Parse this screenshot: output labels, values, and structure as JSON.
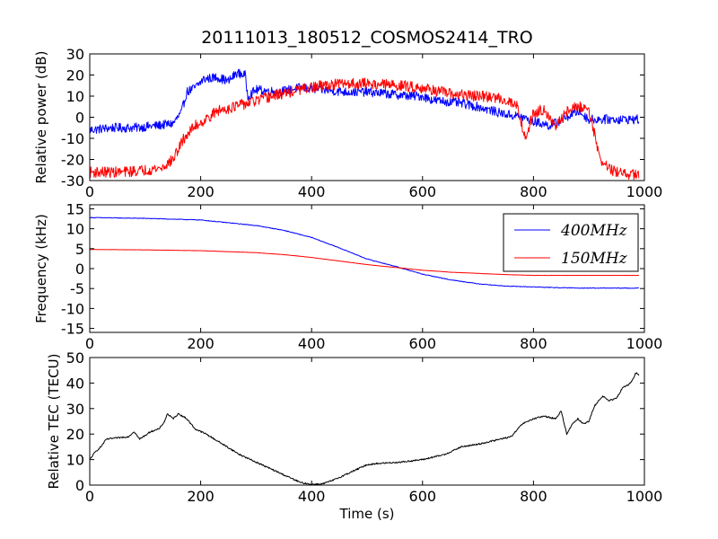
{
  "figure": {
    "title": "20111013_180512_COSMOS2414_TRO",
    "xlabel": "Time (s)"
  },
  "chart_data": [
    {
      "type": "line",
      "ylabel": "Relative power (dB)",
      "xlim": [
        0,
        1000
      ],
      "ylim": [
        -30,
        30
      ],
      "xticks": [
        "0",
        "200",
        "400",
        "600",
        "800",
        "1000"
      ],
      "yticks": [
        "-30",
        "-20",
        "-10",
        "0",
        "10",
        "20",
        "30"
      ],
      "legend": "none",
      "series": [
        {
          "color": "#0000ff",
          "noise": 2.2,
          "points": [
            [
              0,
              -6
            ],
            [
              40,
              -5
            ],
            [
              80,
              -5
            ],
            [
              120,
              -4
            ],
            [
              150,
              -3
            ],
            [
              165,
              2
            ],
            [
              175,
              12
            ],
            [
              190,
              14
            ],
            [
              205,
              18
            ],
            [
              230,
              19
            ],
            [
              250,
              17
            ],
            [
              265,
              21
            ],
            [
              280,
              20
            ],
            [
              285,
              10
            ],
            [
              300,
              13
            ],
            [
              340,
              12
            ],
            [
              380,
              14
            ],
            [
              420,
              13
            ],
            [
              460,
              12
            ],
            [
              500,
              12
            ],
            [
              540,
              11
            ],
            [
              580,
              10
            ],
            [
              600,
              10
            ],
            [
              620,
              8
            ],
            [
              660,
              7
            ],
            [
              700,
              5
            ],
            [
              740,
              2
            ],
            [
              780,
              0
            ],
            [
              800,
              -2
            ],
            [
              830,
              -4
            ],
            [
              860,
              0
            ],
            [
              880,
              3
            ],
            [
              900,
              -1
            ],
            [
              920,
              -1
            ],
            [
              960,
              -1
            ],
            [
              990,
              -1
            ]
          ]
        },
        {
          "color": "#ff0000",
          "noise": 2.6,
          "points": [
            [
              0,
              -26
            ],
            [
              60,
              -26
            ],
            [
              100,
              -25
            ],
            [
              130,
              -24
            ],
            [
              150,
              -20
            ],
            [
              170,
              -10
            ],
            [
              190,
              -4
            ],
            [
              210,
              -1
            ],
            [
              230,
              3
            ],
            [
              260,
              5
            ],
            [
              290,
              7
            ],
            [
              330,
              10
            ],
            [
              380,
              13
            ],
            [
              420,
              15
            ],
            [
              460,
              16
            ],
            [
              500,
              16
            ],
            [
              560,
              15
            ],
            [
              600,
              14
            ],
            [
              650,
              11
            ],
            [
              700,
              10
            ],
            [
              740,
              9
            ],
            [
              770,
              6
            ],
            [
              785,
              -10
            ],
            [
              800,
              2
            ],
            [
              820,
              4
            ],
            [
              840,
              -5
            ],
            [
              860,
              3
            ],
            [
              880,
              5
            ],
            [
              900,
              4
            ],
            [
              920,
              -20
            ],
            [
              940,
              -25
            ],
            [
              960,
              -27
            ],
            [
              990,
              -27
            ]
          ]
        }
      ]
    },
    {
      "type": "line",
      "ylabel": "Frequency (kHz)",
      "xlim": [
        0,
        1000
      ],
      "ylim": [
        -16,
        16
      ],
      "xticks": [
        "0",
        "200",
        "400",
        "600",
        "800",
        "1000"
      ],
      "yticks": [
        "-15",
        "-10",
        "-5",
        "0",
        "5",
        "10",
        "15"
      ],
      "legend": "top-right",
      "series": [
        {
          "name": "400MHz",
          "color": "#0000ff",
          "noise": 0.08,
          "points": [
            [
              0,
              12.8
            ],
            [
              100,
              12.6
            ],
            [
              200,
              12.2
            ],
            [
              300,
              10.8
            ],
            [
              350,
              9.6
            ],
            [
              400,
              7.8
            ],
            [
              450,
              5.2
            ],
            [
              500,
              2.4
            ],
            [
              550,
              0.6
            ],
            [
              600,
              -1.4
            ],
            [
              650,
              -2.8
            ],
            [
              700,
              -3.8
            ],
            [
              750,
              -4.4
            ],
            [
              800,
              -4.6
            ],
            [
              850,
              -4.8
            ],
            [
              900,
              -4.9
            ],
            [
              990,
              -4.9
            ]
          ]
        },
        {
          "name": "150MHz",
          "color": "#ff0000",
          "noise": 0.03,
          "points": [
            [
              0,
              4.8
            ],
            [
              100,
              4.7
            ],
            [
              200,
              4.5
            ],
            [
              300,
              4.0
            ],
            [
              350,
              3.5
            ],
            [
              400,
              2.8
            ],
            [
              450,
              1.9
            ],
            [
              500,
              1.0
            ],
            [
              550,
              0.3
            ],
            [
              600,
              -0.4
            ],
            [
              650,
              -0.9
            ],
            [
              700,
              -1.2
            ],
            [
              750,
              -1.5
            ],
            [
              800,
              -1.7
            ],
            [
              850,
              -1.7
            ],
            [
              900,
              -1.7
            ],
            [
              990,
              -1.7
            ]
          ]
        }
      ]
    },
    {
      "type": "line",
      "ylabel": "Relative TEC (TECU)",
      "xlim": [
        0,
        1000
      ],
      "ylim": [
        0,
        50
      ],
      "xticks": [
        "0",
        "200",
        "400",
        "600",
        "800",
        "1000"
      ],
      "yticks": [
        "0",
        "10",
        "20",
        "30",
        "40",
        "50"
      ],
      "legend": "none",
      "series": [
        {
          "color": "#000000",
          "noise": 0.3,
          "points": [
            [
              0,
              10
            ],
            [
              10,
              13
            ],
            [
              20,
              15
            ],
            [
              30,
              18
            ],
            [
              50,
              18.5
            ],
            [
              70,
              19
            ],
            [
              80,
              21
            ],
            [
              90,
              18
            ],
            [
              110,
              21
            ],
            [
              125,
              22
            ],
            [
              135,
              25
            ],
            [
              140,
              28
            ],
            [
              150,
              26
            ],
            [
              160,
              28
            ],
            [
              175,
              26
            ],
            [
              190,
              22
            ],
            [
              210,
              20
            ],
            [
              240,
              16
            ],
            [
              270,
              12
            ],
            [
              300,
              9
            ],
            [
              330,
              6
            ],
            [
              360,
              3
            ],
            [
              380,
              1
            ],
            [
              400,
              0.3
            ],
            [
              420,
              0.5
            ],
            [
              440,
              2
            ],
            [
              460,
              4
            ],
            [
              480,
              6
            ],
            [
              500,
              8
            ],
            [
              520,
              8.5
            ],
            [
              560,
              9
            ],
            [
              600,
              10
            ],
            [
              640,
              12
            ],
            [
              670,
              15
            ],
            [
              700,
              16
            ],
            [
              740,
              18
            ],
            [
              760,
              19
            ],
            [
              780,
              24
            ],
            [
              800,
              26
            ],
            [
              820,
              27
            ],
            [
              840,
              26
            ],
            [
              850,
              29
            ],
            [
              860,
              20
            ],
            [
              870,
              24
            ],
            [
              880,
              26
            ],
            [
              890,
              24
            ],
            [
              900,
              25
            ],
            [
              910,
              31
            ],
            [
              925,
              35
            ],
            [
              935,
              33
            ],
            [
              950,
              34
            ],
            [
              960,
              38
            ],
            [
              975,
              40
            ],
            [
              985,
              44
            ],
            [
              990,
              43
            ]
          ]
        }
      ]
    }
  ]
}
